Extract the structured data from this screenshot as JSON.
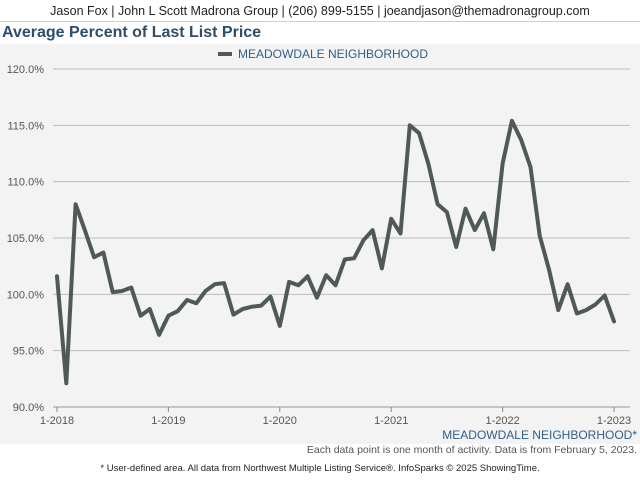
{
  "header": {
    "contact_line": "Jason Fox | John L Scott Madrona Group | (206) 899-5155 | joeandjason@themadronagroup.com"
  },
  "chart_data": {
    "type": "line",
    "title": "Average Percent of Last List Price",
    "legend_position": "top-center",
    "x_tick_labels": [
      "1-2018",
      "1-2019",
      "1-2020",
      "1-2021",
      "1-2022",
      "1-2023"
    ],
    "y_tick_labels": [
      "90.0%",
      "95.0%",
      "100.0%",
      "105.0%",
      "110.0%",
      "115.0%",
      "120.0%"
    ],
    "ylim": [
      90,
      120
    ],
    "xlim": [
      "2018-01",
      "2023-01"
    ],
    "grid": true,
    "area_label": "MEADOWDALE NEIGHBORHOOD*",
    "series": [
      {
        "name": "MEADOWDALE NEIGHBORHOOD",
        "color": "#4f5a56",
        "x": [
          "2018-01",
          "2018-02",
          "2018-03",
          "2018-04",
          "2018-05",
          "2018-06",
          "2018-07",
          "2018-08",
          "2018-09",
          "2018-10",
          "2018-11",
          "2018-12",
          "2019-01",
          "2019-02",
          "2019-03",
          "2019-04",
          "2019-05",
          "2019-06",
          "2019-07",
          "2019-08",
          "2019-09",
          "2019-10",
          "2019-11",
          "2019-12",
          "2020-01",
          "2020-02",
          "2020-03",
          "2020-04",
          "2020-05",
          "2020-06",
          "2020-07",
          "2020-08",
          "2020-09",
          "2020-10",
          "2020-11",
          "2020-12",
          "2021-01",
          "2021-02",
          "2021-03",
          "2021-04",
          "2021-05",
          "2021-06",
          "2021-07",
          "2021-08",
          "2021-09",
          "2021-10",
          "2021-11",
          "2021-12",
          "2022-01",
          "2022-02",
          "2022-03",
          "2022-04",
          "2022-05",
          "2022-06",
          "2022-07",
          "2022-08",
          "2022-09",
          "2022-10",
          "2022-11",
          "2022-12",
          "2023-01"
        ],
        "values": [
          101.6,
          92.1,
          108.0,
          105.7,
          103.3,
          103.7,
          100.2,
          100.3,
          100.6,
          98.1,
          98.7,
          96.4,
          98.1,
          98.5,
          99.5,
          99.2,
          100.3,
          100.9,
          101.0,
          98.2,
          98.7,
          98.9,
          99.0,
          99.8,
          97.2,
          101.1,
          100.8,
          101.6,
          99.7,
          101.7,
          100.8,
          103.1,
          103.2,
          104.8,
          105.7,
          102.3,
          106.7,
          105.4,
          115.0,
          114.3,
          111.6,
          108.0,
          107.3,
          104.2,
          107.6,
          105.7,
          107.2,
          104.0,
          111.6,
          115.4,
          113.7,
          111.3,
          105.2,
          102.2,
          98.6,
          100.9,
          98.3,
          98.6,
          99.1,
          99.9,
          97.6
        ]
      }
    ]
  },
  "footer": {
    "data_note": "Each data point is one month of activity. Data is from February 5, 2023.",
    "source_note": "* User-defined area. All data from Northwest Multiple Listing Service®. InfoSparks © 2025 ShowingTime."
  }
}
